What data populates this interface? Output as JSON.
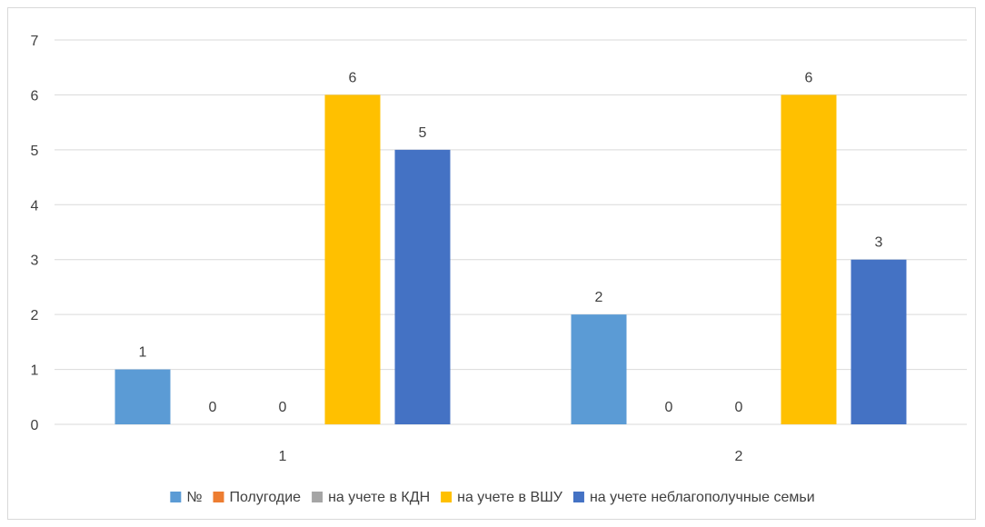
{
  "chart_data": {
    "type": "bar",
    "title": "",
    "xlabel": "",
    "ylabel": "",
    "ylim": [
      0,
      7
    ],
    "yticks": [
      0,
      1,
      2,
      3,
      4,
      5,
      6,
      7
    ],
    "grid": true,
    "legend_position": "bottom",
    "categories": [
      "1",
      "2"
    ],
    "series": [
      {
        "name": "№",
        "color": "#5b9bd5",
        "values": [
          1,
          2
        ]
      },
      {
        "name": "Полугодие",
        "color": "#ed7d31",
        "values": [
          0,
          0
        ]
      },
      {
        "name": "на учете в КДН",
        "color": "#a5a5a5",
        "values": [
          0,
          0
        ]
      },
      {
        "name": "на учете в ВШУ",
        "color": "#ffc000",
        "values": [
          6,
          6
        ]
      },
      {
        "name": "на учете неблагополучные семьи",
        "color": "#4472c4",
        "values": [
          5,
          3
        ]
      }
    ]
  }
}
